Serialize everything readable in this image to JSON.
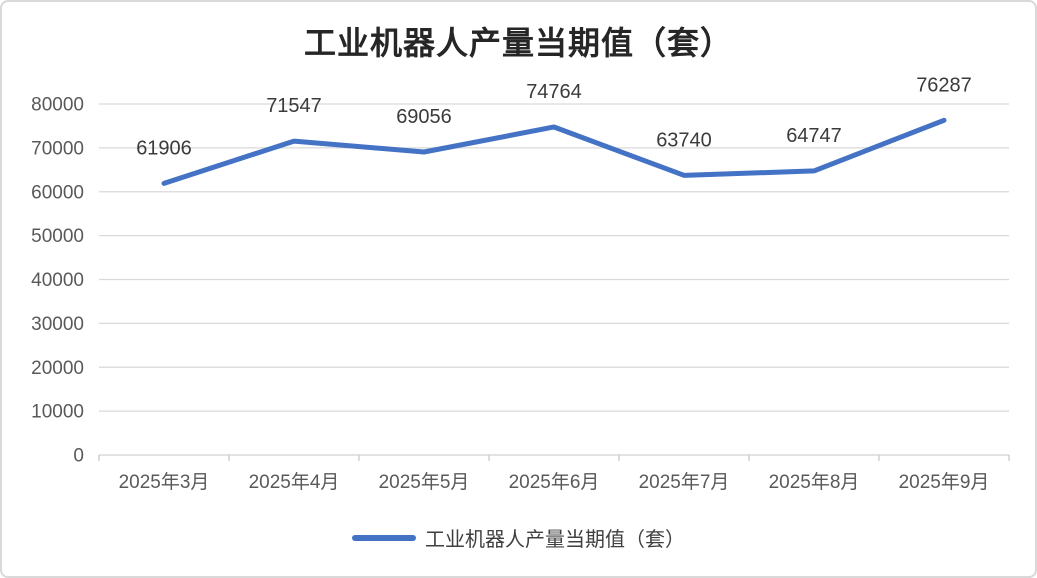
{
  "chart_data": {
    "type": "line",
    "title": "工业机器人产量当期值（套）",
    "categories": [
      "2025年3月",
      "2025年4月",
      "2025年5月",
      "2025年6月",
      "2025年7月",
      "2025年8月",
      "2025年9月"
    ],
    "series": [
      {
        "name": "工业机器人产量当期值（套）",
        "values": [
          61906,
          71547,
          69056,
          74764,
          63740,
          64747,
          76287
        ]
      }
    ],
    "data_labels_shown": true,
    "xlabel": "",
    "ylabel": "",
    "ylim": [
      0,
      80000
    ],
    "ytick_step": 10000,
    "ytick_labels": [
      "0",
      "10000",
      "20000",
      "30000",
      "40000",
      "50000",
      "60000",
      "70000",
      "80000"
    ],
    "grid": true,
    "legend_position": "bottom",
    "colors": {
      "line": "#4472C4",
      "gridline": "#d9d9d9",
      "tick": "#c9c9c9",
      "axis_text": "#595959",
      "data_label": "#3b3b3b",
      "title_text": "#262626",
      "frame_border": "#d9d9d9",
      "background": "#ffffff"
    }
  }
}
